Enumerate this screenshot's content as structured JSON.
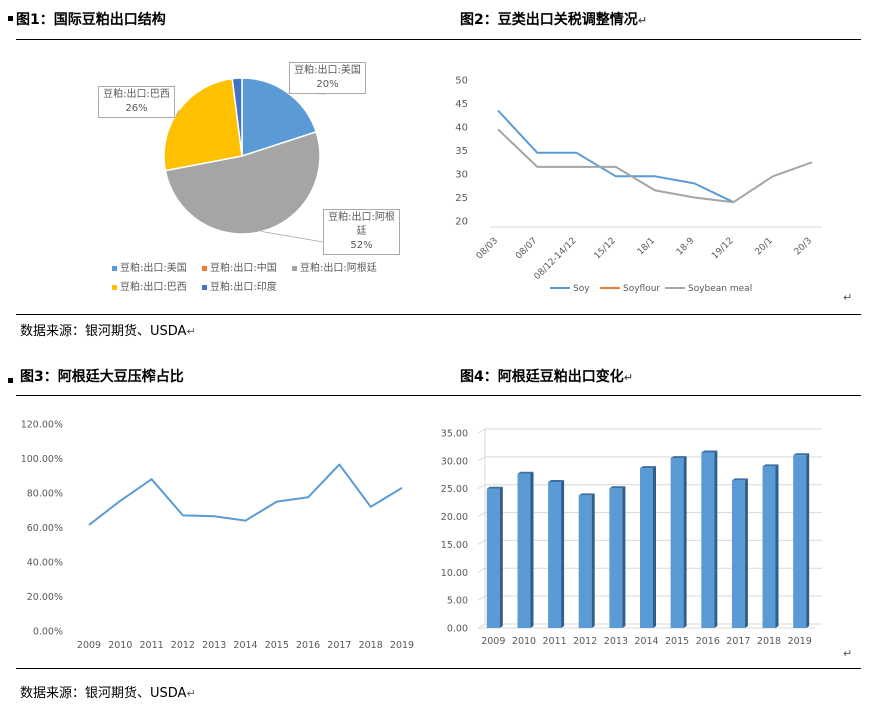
{
  "row1": {
    "left_title": "图1：国际豆粕出口结构",
    "right_title": "图2：豆类出口关税调整情况",
    "source": "数据来源：银河期货、USDA"
  },
  "row2": {
    "left_title": "图3：阿根廷大豆压榨占比",
    "right_title": "图4：阿根廷豆粕出口变化",
    "source": "数据来源：银河期货、USDA"
  },
  "return_mark": "↵",
  "chart_data": [
    {
      "type": "pie",
      "title": "",
      "slices": [
        {
          "label": "豆粕:出口:美国",
          "value": 20,
          "color": "#5B9BD5",
          "label_text": "20%"
        },
        {
          "label": "豆粕:出口:中国",
          "value": 0,
          "color": "#ED7D31",
          "label_text": ""
        },
        {
          "label": "豆粕:出口:阿根廷",
          "value": 52,
          "color": "#A5A5A5",
          "label_text": "52%"
        },
        {
          "label": "豆粕:出口:巴西",
          "value": 26,
          "color": "#FFC000",
          "label_text": "26%"
        },
        {
          "label": "豆粕:出口:印度",
          "value": 2,
          "color": "#4472C4",
          "label_text": ""
        }
      ],
      "callouts": {
        "us": {
          "name_a": "豆粕:出口:美国",
          "pct": "20%"
        },
        "br": {
          "name_a": "豆粕:出口:巴西",
          "pct": "26%"
        },
        "ar": {
          "name_a": "豆粕:出口:阿根",
          "name_b": "廷",
          "pct": "52%"
        }
      },
      "legend_position": "bottom"
    },
    {
      "type": "line",
      "title": "",
      "categories": [
        "08/03",
        "08/07",
        "08/12-14/12",
        "15/12",
        "18/1",
        "18-9",
        "19/12",
        "20/1",
        "20/3"
      ],
      "series": [
        {
          "name": "Soy",
          "color": "#5B9BD5",
          "values": [
            43.5,
            34.5,
            34.5,
            29.5,
            29.5,
            28,
            24,
            null,
            null
          ]
        },
        {
          "name": "Soyflour",
          "color": "#ED7D31",
          "values": [
            null,
            null,
            null,
            null,
            null,
            null,
            null,
            null,
            null
          ]
        },
        {
          "name": "Soybean meal",
          "color": "#A5A5A5",
          "values": [
            39.5,
            31.5,
            31.5,
            31.5,
            26.5,
            25,
            24,
            29.5,
            32.5
          ]
        }
      ],
      "ylim": [
        20,
        50
      ],
      "yticks": [
        "20",
        "25",
        "30",
        "35",
        "40",
        "45",
        "50"
      ],
      "legend_position": "bottom",
      "grid": false
    },
    {
      "type": "line",
      "title": "",
      "categories": [
        "2009",
        "2010",
        "2011",
        "2012",
        "2013",
        "2014",
        "2015",
        "2016",
        "2017",
        "2018",
        "2019"
      ],
      "series": [
        {
          "color": "#5B9BD5",
          "values": [
            0.615,
            0.755,
            0.88,
            0.67,
            0.665,
            0.64,
            0.75,
            0.775,
            0.965,
            0.72,
            0.83
          ]
        }
      ],
      "ylim": [
        0,
        1.2
      ],
      "yticks": [
        "0.00%",
        "20.00%",
        "40.00%",
        "60.00%",
        "80.00%",
        "100.00%",
        "120.00%"
      ],
      "grid": false
    },
    {
      "type": "bar",
      "title": "",
      "categories": [
        "2009",
        "2010",
        "2011",
        "2012",
        "2013",
        "2014",
        "2015",
        "2016",
        "2017",
        "2018",
        "2019"
      ],
      "values": [
        25,
        27.7,
        26.2,
        23.8,
        25.1,
        28.7,
        30.5,
        31.5,
        26.5,
        29,
        31
      ],
      "color": "#5B9BD5",
      "ylim": [
        0,
        35
      ],
      "yticks": [
        "0.00",
        "5.00",
        "10.00",
        "15.00",
        "20.00",
        "25.00",
        "30.00",
        "35.00"
      ],
      "grid": true
    }
  ]
}
